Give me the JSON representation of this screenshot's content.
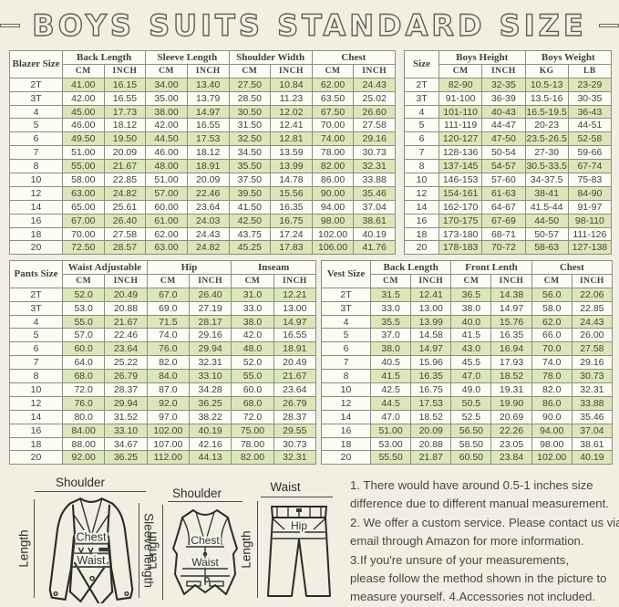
{
  "page": {
    "title": "BOYS SUITS STANDARD SIZE"
  },
  "colors": {
    "background": "#f0efe1",
    "stripe_green": "#dbe7b8",
    "table_border": "#8d8d83",
    "title_outline": "#5f5f55",
    "text": "#43433c"
  },
  "tables": {
    "blazer": {
      "corner": "Blazer Size",
      "groups": [
        {
          "label": "Back Length",
          "sub": [
            "CM",
            "INCH"
          ]
        },
        {
          "label": "Sleeve Length",
          "sub": [
            "CM",
            "INCH"
          ]
        },
        {
          "label": "Shoulder Width",
          "sub": [
            "CM",
            "INCH"
          ]
        },
        {
          "label": "Chest",
          "sub": [
            "CM",
            "INCH"
          ]
        }
      ],
      "rows": [
        [
          "2T",
          "41.00",
          "16.15",
          "34.00",
          "13.40",
          "27.50",
          "10.84",
          "62.00",
          "24.43"
        ],
        [
          "3T",
          "42.00",
          "16.55",
          "35.00",
          "13.79",
          "28.50",
          "11.23",
          "63.50",
          "25.02"
        ],
        [
          "4",
          "45.00",
          "17.73",
          "38.00",
          "14.97",
          "30.50",
          "12.02",
          "67.50",
          "26.60"
        ],
        [
          "5",
          "46.00",
          "18.12",
          "42.00",
          "16.55",
          "31.50",
          "12.41",
          "70.00",
          "27.58"
        ],
        [
          "6",
          "49.50",
          "19.50",
          "44.50",
          "17.53",
          "32.50",
          "12.81",
          "74.00",
          "29.16"
        ],
        [
          "7",
          "51.00",
          "20.09",
          "46.00",
          "18.12",
          "34.50",
          "13.59",
          "78.00",
          "30.73"
        ],
        [
          "8",
          "55.00",
          "21.67",
          "48.00",
          "18.91",
          "35.50",
          "13.99",
          "82.00",
          "32.31"
        ],
        [
          "10",
          "58.00",
          "22.85",
          "51.00",
          "20.09",
          "37.50",
          "14.78",
          "86.00",
          "33.88"
        ],
        [
          "12",
          "63.00",
          "24.82",
          "57.00",
          "22.46",
          "39.50",
          "15.56",
          "90.00",
          "35.46"
        ],
        [
          "14",
          "65.00",
          "25.61",
          "60.00",
          "23.64",
          "41.50",
          "16.35",
          "94.00",
          "37.04"
        ],
        [
          "16",
          "67.00",
          "26.40",
          "61.00",
          "24.03",
          "42.50",
          "16.75",
          "98.00",
          "38.61"
        ],
        [
          "18",
          "70.00",
          "27.58",
          "62.00",
          "24.43",
          "43.75",
          "17.24",
          "102.00",
          "40.19"
        ],
        [
          "20",
          "72.50",
          "28.57",
          "63.00",
          "24.82",
          "45.25",
          "17.83",
          "106.00",
          "41.76"
        ]
      ]
    },
    "hw": {
      "corner": "Size",
      "groups": [
        {
          "label": "Boys Height",
          "sub": [
            "CM",
            "INCH"
          ]
        },
        {
          "label": "Boys Weight",
          "sub": [
            "KG",
            "LB"
          ]
        }
      ],
      "rows": [
        [
          "2T",
          "82-90",
          "32-35",
          "10.5-13",
          "23-29"
        ],
        [
          "3T",
          "91-100",
          "36-39",
          "13.5-16",
          "30-35"
        ],
        [
          "4",
          "101-110",
          "40-43",
          "16.5-19.5",
          "36-43"
        ],
        [
          "5",
          "111-119",
          "44-47",
          "20-23",
          "44-51"
        ],
        [
          "6",
          "120-127",
          "47-50",
          "23.5-26.5",
          "52-58"
        ],
        [
          "7",
          "128-136",
          "50-54",
          "27-30",
          "59-66"
        ],
        [
          "8",
          "137-145",
          "54-57",
          "30.5-33.5",
          "67-74"
        ],
        [
          "10",
          "146-153",
          "57-60",
          "34-37.5",
          "75-83"
        ],
        [
          "12",
          "154-161",
          "61-63",
          "38-41",
          "84-90"
        ],
        [
          "14",
          "162-170",
          "64-67",
          "41.5-44",
          "91-97"
        ],
        [
          "16",
          "170-175",
          "67-69",
          "44-50",
          "98-110"
        ],
        [
          "18",
          "173-180",
          "68-71",
          "50-57",
          "111-126"
        ],
        [
          "20",
          "178-183",
          "70-72",
          "58-63",
          "127-138"
        ]
      ]
    },
    "pants": {
      "corner": "Pants Size",
      "groups": [
        {
          "label": "Waist Adjustable",
          "sub": [
            "CM",
            "INCH"
          ]
        },
        {
          "label": "Hip",
          "sub": [
            "CM",
            "INCH"
          ]
        },
        {
          "label": "Inseam",
          "sub": [
            "CM",
            "INCH"
          ]
        }
      ],
      "rows": [
        [
          "2T",
          "52.0",
          "20.49",
          "67.0",
          "26.40",
          "31.0",
          "12.21"
        ],
        [
          "3T",
          "53.0",
          "20.88",
          "69.0",
          "27.19",
          "33.0",
          "13.00"
        ],
        [
          "4",
          "55.0",
          "21.67",
          "71.5",
          "28.17",
          "38.0",
          "14.97"
        ],
        [
          "5",
          "57.0",
          "22.46",
          "74.0",
          "29.16",
          "42.0",
          "16.55"
        ],
        [
          "6",
          "60.0",
          "23.64",
          "76.0",
          "29.94",
          "48.0",
          "18.91"
        ],
        [
          "7",
          "64.0",
          "25.22",
          "82.0",
          "32.31",
          "52.0",
          "20.49"
        ],
        [
          "8",
          "68.0",
          "26.79",
          "84.0",
          "33.10",
          "55.0",
          "21.67"
        ],
        [
          "10",
          "72.0",
          "28.37",
          "87.0",
          "34.28",
          "60.0",
          "23.64"
        ],
        [
          "12",
          "76.0",
          "29.94",
          "92.0",
          "36.25",
          "68.0",
          "26.79"
        ],
        [
          "14",
          "80.0",
          "31.52",
          "97.0",
          "38.22",
          "72.0",
          "28.37"
        ],
        [
          "16",
          "84.00",
          "33.10",
          "102.00",
          "40.19",
          "75.00",
          "29.55"
        ],
        [
          "18",
          "88.00",
          "34.67",
          "107.00",
          "42.16",
          "78.00",
          "30.73"
        ],
        [
          "20",
          "92.00",
          "36.25",
          "112.00",
          "44.13",
          "82.00",
          "32.31"
        ]
      ]
    },
    "vest": {
      "corner": "Vest Size",
      "groups": [
        {
          "label": "Back Length",
          "sub": [
            "CM",
            "INCH"
          ]
        },
        {
          "label": "Front Lenth",
          "sub": [
            "CM",
            "INCH"
          ]
        },
        {
          "label": "Chest",
          "sub": [
            "CM",
            "INCH"
          ]
        }
      ],
      "rows": [
        [
          "2T",
          "31.5",
          "12.41",
          "36.5",
          "14.38",
          "56.0",
          "22.06"
        ],
        [
          "3T",
          "33.0",
          "13.00",
          "38.0",
          "14.97",
          "58.0",
          "22.85"
        ],
        [
          "4",
          "35.5",
          "13.99",
          "40.0",
          "15.76",
          "62.0",
          "24.43"
        ],
        [
          "5",
          "37.0",
          "14.58",
          "41.5",
          "16.35",
          "66.0",
          "26.00"
        ],
        [
          "6",
          "38.0",
          "14.97",
          "43.0",
          "16.94",
          "70.0",
          "27.58"
        ],
        [
          "7",
          "40.5",
          "15.96",
          "45.5",
          "17.93",
          "74.0",
          "29.16"
        ],
        [
          "8",
          "41.5",
          "16.35",
          "47.0",
          "18.52",
          "78.0",
          "30.73"
        ],
        [
          "10",
          "42.5",
          "16.75",
          "49.0",
          "19.31",
          "82.0",
          "32.31"
        ],
        [
          "12",
          "44.5",
          "17.53",
          "50.5",
          "19.90",
          "86.0",
          "33.88"
        ],
        [
          "14",
          "47.0",
          "18.52",
          "52.5",
          "20.69",
          "90.0",
          "35.46"
        ],
        [
          "16",
          "51.00",
          "20.09",
          "56.50",
          "22.26",
          "94.00",
          "37.04"
        ],
        [
          "18",
          "53.00",
          "20.88",
          "58.50",
          "23.05",
          "98.00",
          "38.61"
        ],
        [
          "20",
          "55.50",
          "21.87",
          "60.50",
          "23.84",
          "102.00",
          "40.19"
        ]
      ]
    }
  },
  "diagrams": {
    "jacket": {
      "top": "Shoulder",
      "left": "Length",
      "right": "Sleeve length",
      "chest": "Chest",
      "waist": "Waist"
    },
    "vest": {
      "top": "Shoulder",
      "left": "Length",
      "chest": "Chest",
      "waist": "Waist"
    },
    "pants": {
      "top": "Waist",
      "left": "Length",
      "hip": "Hip"
    }
  },
  "notes": {
    "lines": [
      "1. There would have around 0.5-1 inches size",
      "difference due to different manual measurement.",
      "2. We offer a custom service. Please contact us via",
      "email through Amazon for more information.",
      "3.If you're unsure of your measurements,",
      "please follow the method shown in the picture to",
      "measure yourself. 4.Accessories not included."
    ]
  }
}
